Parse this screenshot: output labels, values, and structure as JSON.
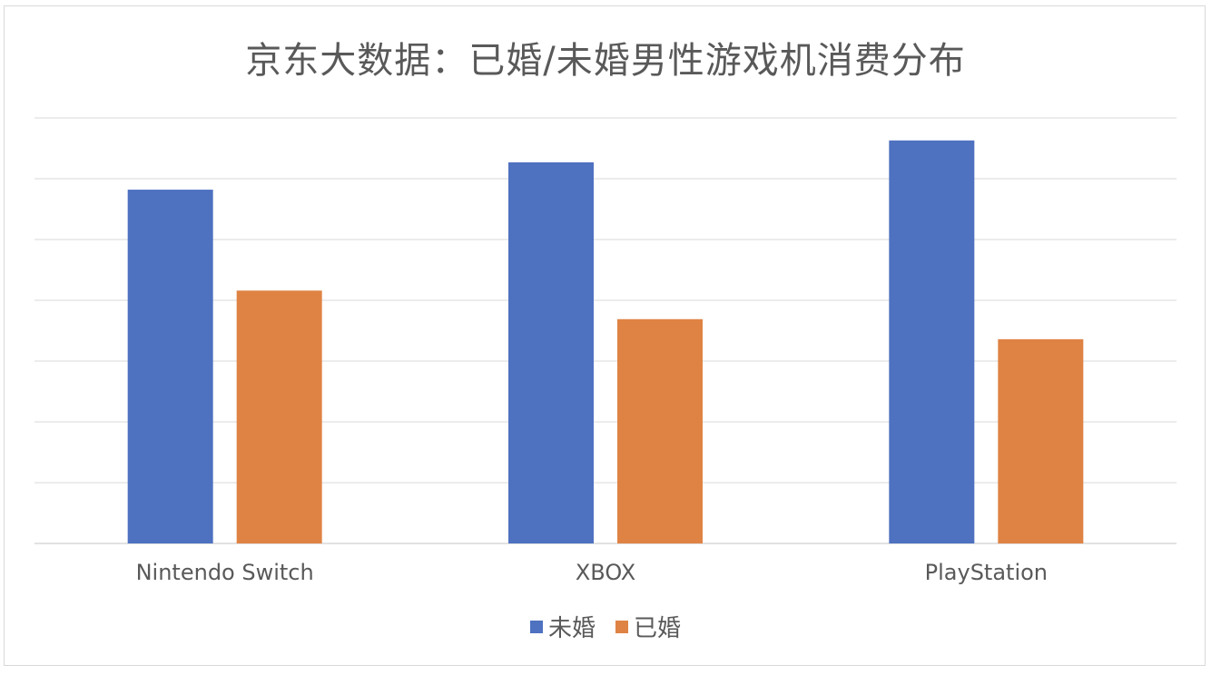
{
  "title": "京东大数据：已婚/未婚男性游戏机消费分布",
  "colors": {
    "unmarried": "#4e71c0",
    "married": "#df8344",
    "grid": "#d9d9d9",
    "text": "#595959"
  },
  "chart_data": {
    "type": "bar",
    "title": "京东大数据：已婚/未婚男性游戏机消费分布",
    "categories": [
      "Nintendo Switch",
      "XBOX",
      "PlayStation"
    ],
    "series": [
      {
        "name": "未婚",
        "values": [
          58.2,
          62.7,
          66.3
        ]
      },
      {
        "name": "已婚",
        "values": [
          41.6,
          36.9,
          33.6
        ]
      }
    ],
    "ylim": [
      0,
      70
    ],
    "ytick_step": 10,
    "y_axis_labels_visible": false,
    "grid": true,
    "legend": "bottom"
  }
}
